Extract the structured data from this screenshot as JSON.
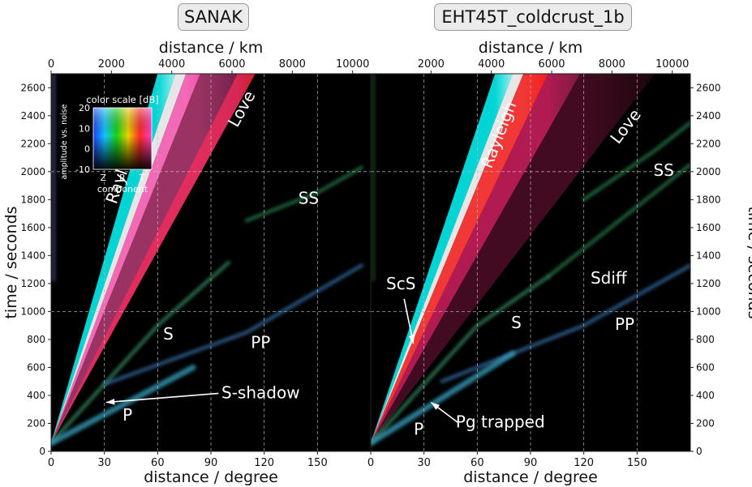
{
  "chart_data": [
    {
      "type": "scatter",
      "title": "SANAK",
      "xlabel": "distance / degree",
      "x2label": "distance / km",
      "ylabel": "time / seconds",
      "xlim": [
        0,
        180
      ],
      "x2lim": [
        0,
        10600
      ],
      "ylim": [
        0,
        2700
      ],
      "xticks": [
        0,
        30,
        60,
        90,
        120,
        150
      ],
      "x2ticks": [
        0,
        2000,
        4000,
        6000,
        8000,
        10000
      ],
      "yticks": [
        0,
        200,
        400,
        600,
        800,
        1000,
        1200,
        1400,
        1600,
        1800,
        2000,
        2200,
        2400,
        2600
      ],
      "grid": true,
      "colorscale": {
        "title": "color scale [dB]",
        "ylabel": "amplitude vs. noise",
        "xlabel": "component",
        "categories": [
          "Z",
          "R",
          "T"
        ],
        "range": [
          -10,
          20
        ],
        "ticks": [
          20,
          10,
          0,
          -10
        ]
      },
      "series": [
        {
          "name": "Rayleigh",
          "x": [
            0,
            70
          ],
          "y": [
            60,
            2700
          ],
          "color": "#00e5e5"
        },
        {
          "name": "Love",
          "x": [
            0,
            115
          ],
          "y": [
            60,
            2700
          ],
          "color": "#ff3fa0"
        },
        {
          "name": "S",
          "x": [
            0,
            60,
            100
          ],
          "y": [
            60,
            900,
            1350
          ],
          "color": "#3f9f6f"
        },
        {
          "name": "PP",
          "x": [
            30,
            110,
            175
          ],
          "y": [
            480,
            850,
            1330
          ],
          "color": "#3d7fc0"
        },
        {
          "name": "SS",
          "x": [
            110,
            150,
            175
          ],
          "y": [
            1650,
            1850,
            2030
          ],
          "color": "#2f8f57"
        },
        {
          "name": "P",
          "x": [
            0,
            80
          ],
          "y": [
            60,
            600
          ],
          "color": "#3aa8c8"
        }
      ],
      "annotations": [
        {
          "text": "Rayleigh",
          "x": 43,
          "y": 2000
        },
        {
          "text": "Love",
          "x": 110,
          "y": 2430
        },
        {
          "text": "SS",
          "x": 145,
          "y": 1770
        },
        {
          "text": "S",
          "x": 66,
          "y": 800
        },
        {
          "text": "PP",
          "x": 118,
          "y": 740
        },
        {
          "text": "S-shadow",
          "x": 118,
          "y": 380,
          "arrow_to": [
            31,
            350
          ]
        },
        {
          "text": "P",
          "x": 43,
          "y": 220
        }
      ]
    },
    {
      "type": "scatter",
      "title": "EHT45T_coldcrust_1b",
      "xlabel": "distance / degree",
      "x2label": "distance / km",
      "ylabel": "time / seconds",
      "xlim": [
        0,
        180
      ],
      "x2lim": [
        0,
        10600
      ],
      "ylim": [
        0,
        2700
      ],
      "xticks": [
        0,
        30,
        60,
        90,
        120,
        150
      ],
      "x2ticks": [
        2000,
        4000,
        6000,
        8000,
        10000
      ],
      "yticks": [
        0,
        200,
        400,
        600,
        800,
        1000,
        1200,
        1400,
        1600,
        1800,
        2000,
        2200,
        2400,
        2600
      ],
      "grid": true,
      "series": [
        {
          "name": "Rayleigh",
          "x": [
            0,
            80
          ],
          "y": [
            60,
            2700
          ],
          "color": "#00e5e5"
        },
        {
          "name": "Love",
          "x": [
            0,
            160
          ],
          "y": [
            60,
            2700
          ],
          "color": "#ff2020"
        },
        {
          "name": "S",
          "x": [
            0,
            60,
            100
          ],
          "y": [
            60,
            900,
            1250
          ],
          "color": "#3f9f6f"
        },
        {
          "name": "Sdiff",
          "x": [
            100,
            180
          ],
          "y": [
            1250,
            2050
          ],
          "color": "#2f8f57"
        },
        {
          "name": "PP",
          "x": [
            40,
            120,
            180
          ],
          "y": [
            500,
            900,
            1330
          ],
          "color": "#3d7fc0"
        },
        {
          "name": "SS",
          "x": [
            120,
            160,
            180
          ],
          "y": [
            1800,
            2150,
            2350
          ],
          "color": "#2f8f57"
        },
        {
          "name": "P",
          "x": [
            0,
            80
          ],
          "y": [
            60,
            700
          ],
          "color": "#3aa8c8"
        }
      ],
      "annotations": [
        {
          "text": "Rayleigh",
          "x": 75,
          "y": 2250
        },
        {
          "text": "Love",
          "x": 146,
          "y": 2300
        },
        {
          "text": "SS",
          "x": 165,
          "y": 1970
        },
        {
          "text": "ScS",
          "x": 17,
          "y": 1160,
          "arrow_to": [
            24,
            770
          ]
        },
        {
          "text": "Sdiff",
          "x": 134,
          "y": 1200
        },
        {
          "text": "S",
          "x": 82,
          "y": 880
        },
        {
          "text": "PP",
          "x": 143,
          "y": 870
        },
        {
          "text": "P",
          "x": 27,
          "y": 120
        },
        {
          "text": "Pg trapped",
          "x": 73,
          "y": 170,
          "arrow_to": [
            34,
            350
          ]
        }
      ]
    }
  ]
}
